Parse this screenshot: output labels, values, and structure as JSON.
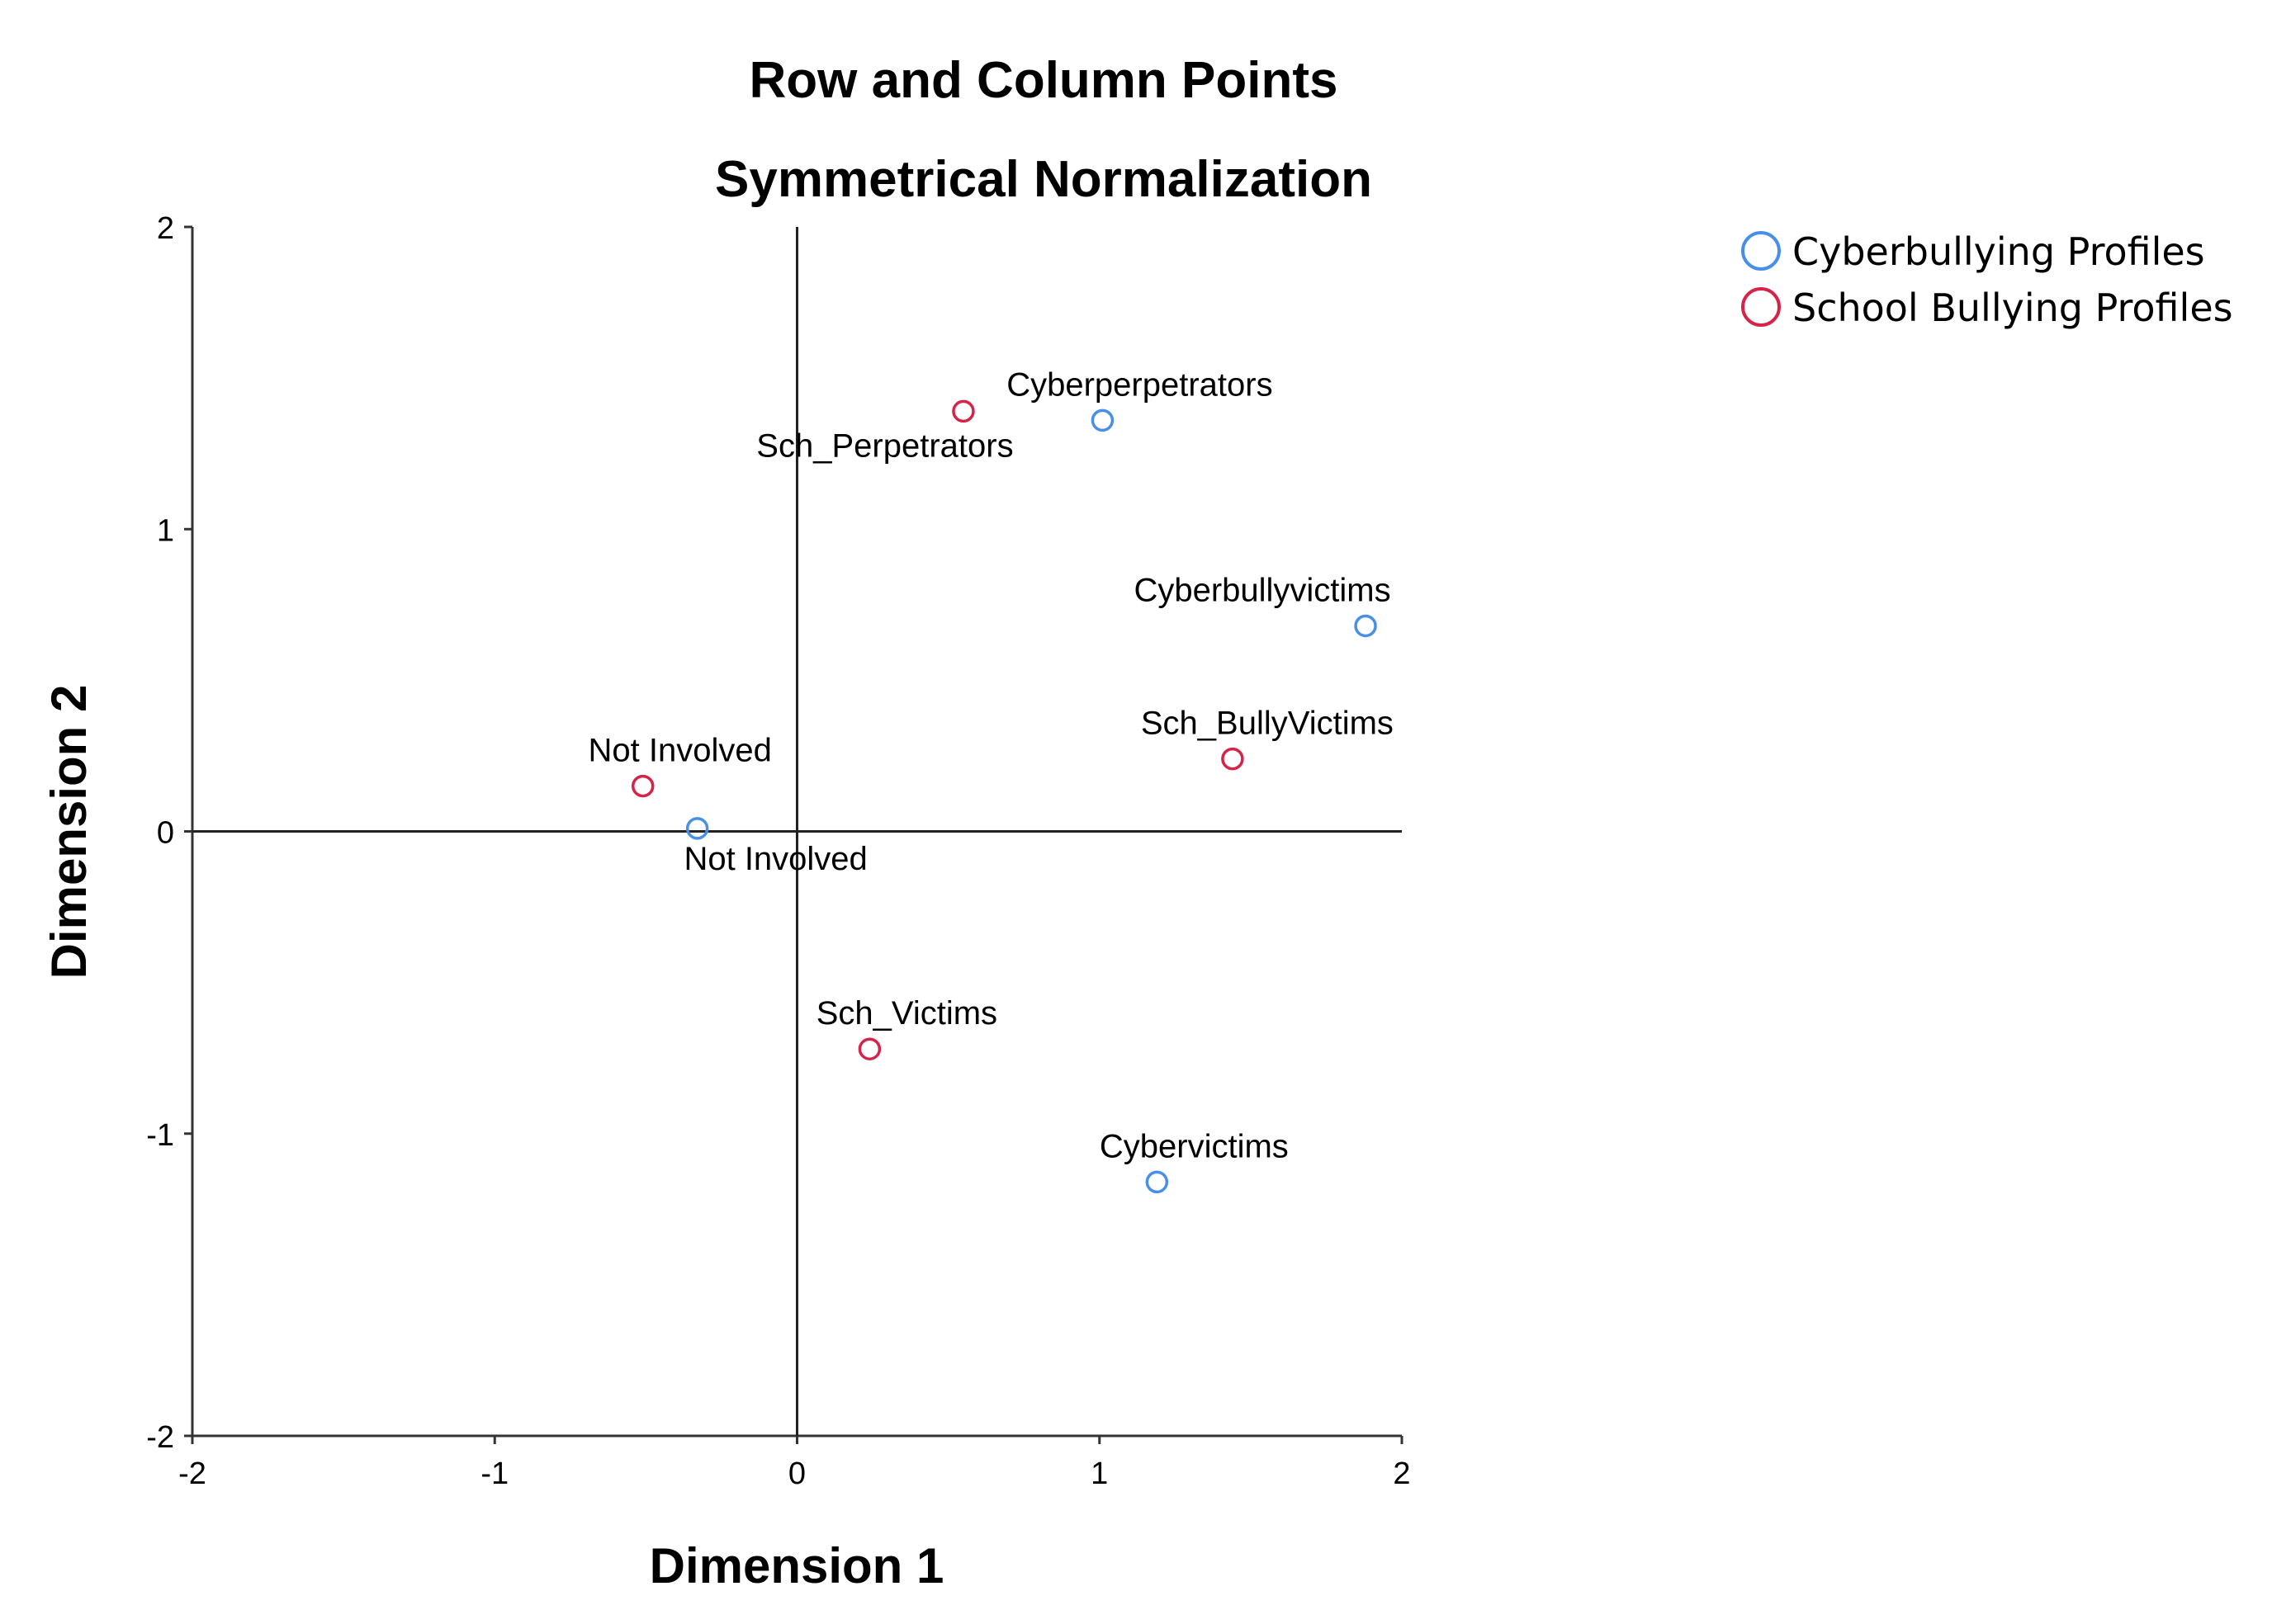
{
  "chart_data": {
    "type": "scatter",
    "title": "Row and Column Points",
    "subtitle": "Symmetrical Normalization",
    "xlabel": "Dimension 1",
    "ylabel": "Dimension 2",
    "xlim": [
      -2,
      2
    ],
    "ylim": [
      -2,
      2
    ],
    "xticks": [
      "-2",
      "-1",
      "0",
      "1",
      "2"
    ],
    "yticks": [
      "2",
      "1",
      "0",
      "-1",
      "-2"
    ],
    "grid": false,
    "reference_lines": [
      0,
      0
    ],
    "legend_position": "top-right",
    "series": [
      {
        "name": "Cyberbullying Profiles",
        "color": "#4a8fe7",
        "points": [
          {
            "label": "Cyberperpetrators",
            "x": 1.01,
            "y": 1.36
          },
          {
            "label": "Cyberbullyvictims",
            "x": 1.88,
            "y": 0.68
          },
          {
            "label": "Not Involved",
            "x": -0.33,
            "y": 0.01
          },
          {
            "label": "Cybervictims",
            "x": 1.19,
            "y": -1.16
          }
        ]
      },
      {
        "name": "School Bullying Profiles",
        "color": "#d6234a",
        "points": [
          {
            "label": "Sch_Perpetrators",
            "x": 0.55,
            "y": 1.39
          },
          {
            "label": "Sch_BullyVictims",
            "x": 1.44,
            "y": 0.24
          },
          {
            "label": "Not Involved",
            "x": -0.51,
            "y": 0.15
          },
          {
            "label": "Sch_Victims",
            "x": 0.24,
            "y": -0.72
          }
        ]
      }
    ]
  }
}
